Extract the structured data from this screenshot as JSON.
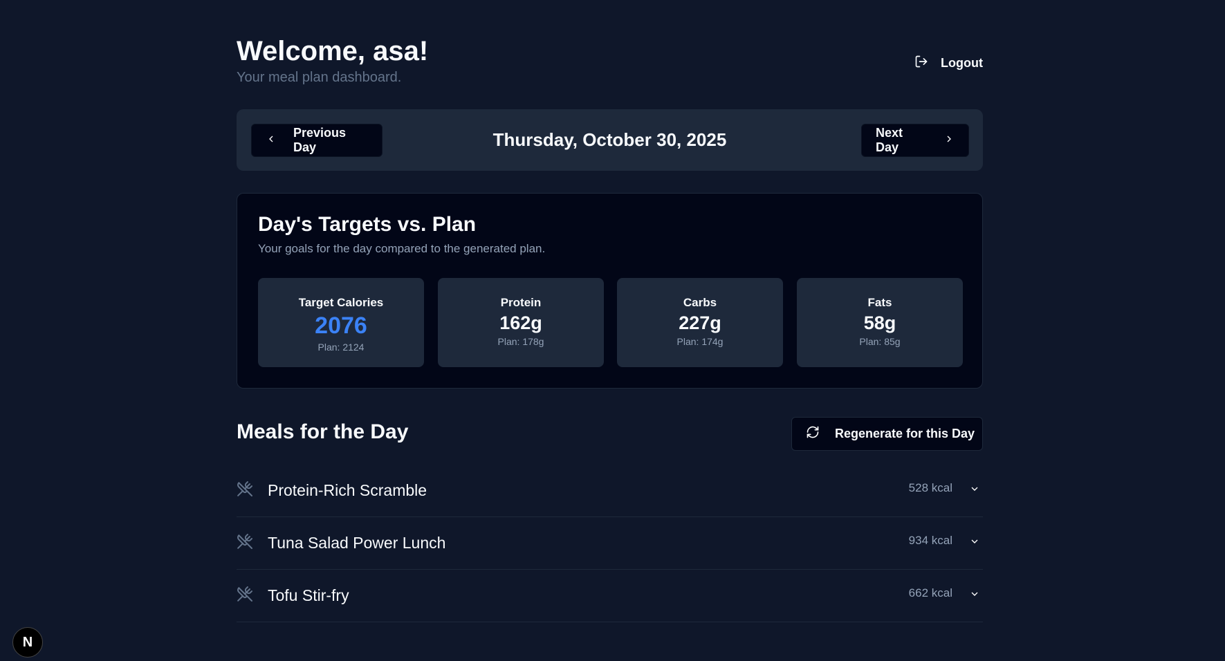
{
  "header": {
    "title": "Welcome, asa!",
    "subtitle": "Your meal plan dashboard.",
    "logout_label": "Logout"
  },
  "date_nav": {
    "prev_label": "Previous Day",
    "date": "Thursday, October 30, 2025",
    "next_label": "Next Day"
  },
  "targets": {
    "title": "Day's Targets vs. Plan",
    "subtitle": "Your goals for the day compared to the generated plan.",
    "stats": [
      {
        "label": "Target Calories",
        "value": "2076",
        "plan": "Plan: 2124"
      },
      {
        "label": "Protein",
        "value": "162g",
        "plan": "Plan: 178g"
      },
      {
        "label": "Carbs",
        "value": "227g",
        "plan": "Plan: 174g"
      },
      {
        "label": "Fats",
        "value": "58g",
        "plan": "Plan: 85g"
      }
    ],
    "accent": "#3b82f6"
  },
  "meals": {
    "title": "Meals for the Day",
    "regenerate_label": "Regenerate for this Day",
    "items": [
      {
        "name": "Protein-Rich Scramble",
        "kcal": "528 kcal"
      },
      {
        "name": "Tuna Salad Power Lunch",
        "kcal": "934 kcal"
      },
      {
        "name": "Tofu Stir-fry",
        "kcal": "662 kcal"
      }
    ]
  },
  "badge": {
    "letter": "N"
  }
}
